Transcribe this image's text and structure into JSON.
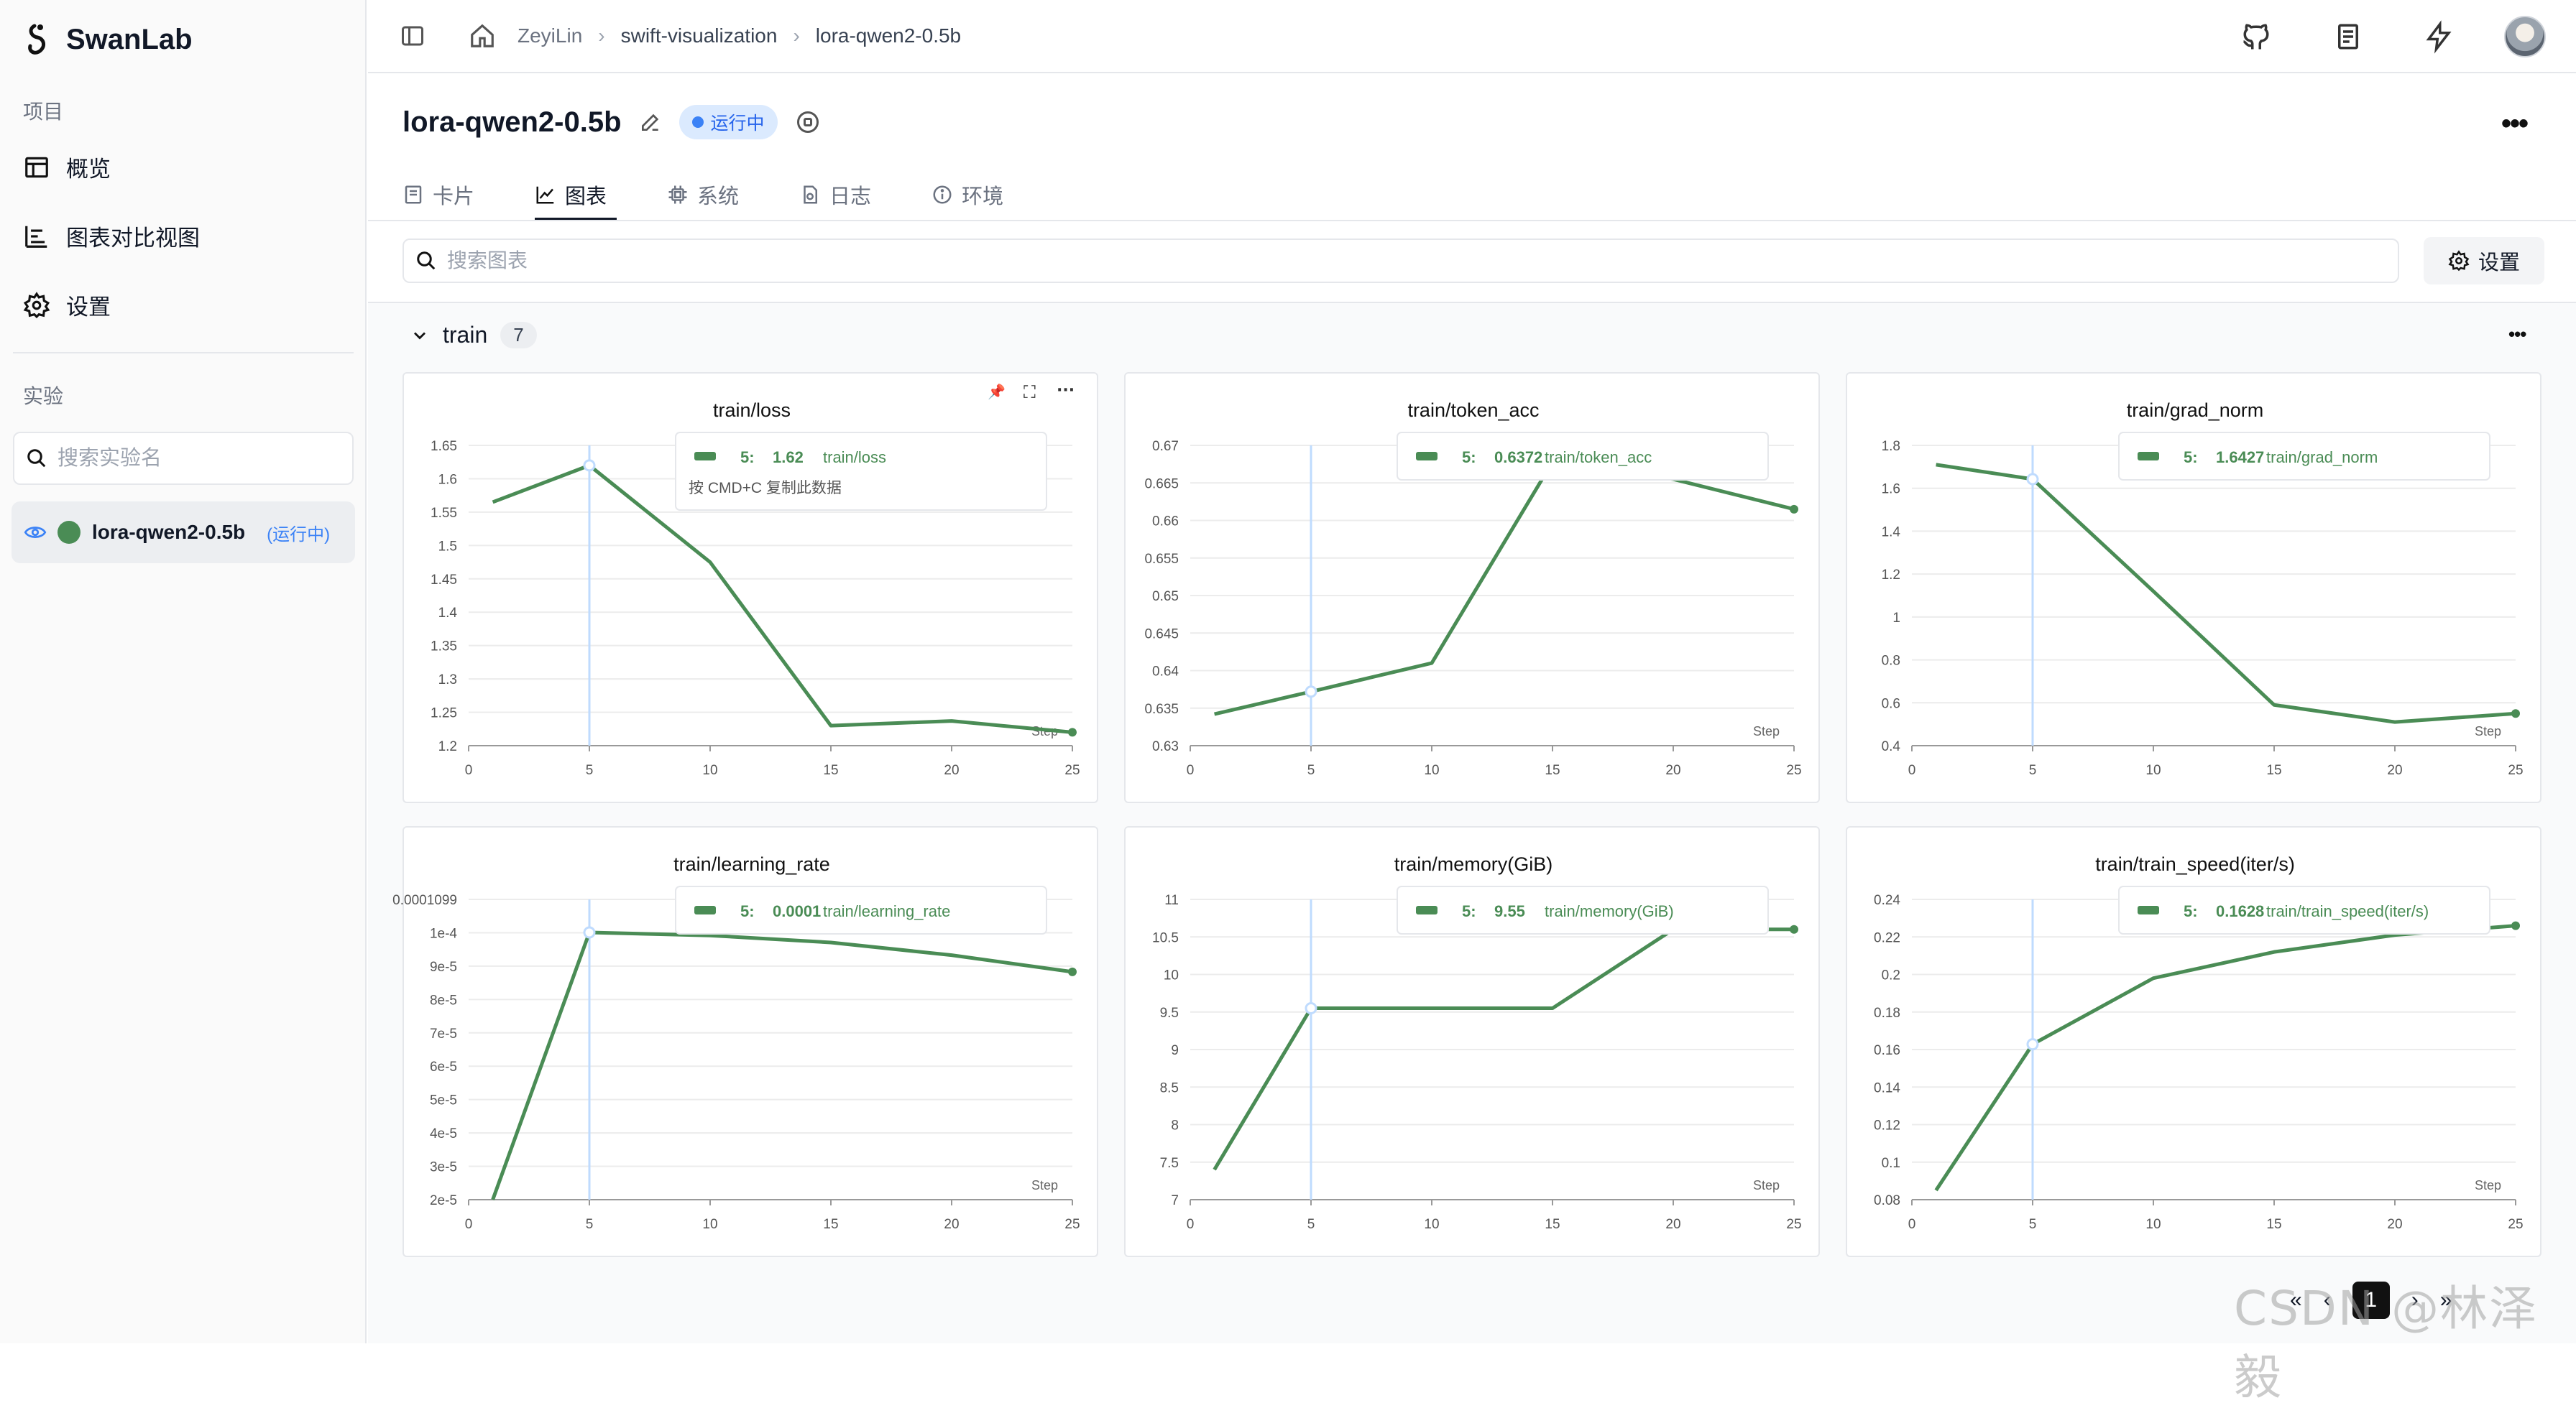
{
  "app": {
    "name": "SwanLab"
  },
  "sidebar": {
    "project_label": "项目",
    "nav": [
      {
        "label": "概览",
        "icon": "table-icon"
      },
      {
        "label": "图表对比视图",
        "icon": "bar-chart-icon"
      },
      {
        "label": "设置",
        "icon": "gear-icon"
      }
    ],
    "experiments_label": "实验",
    "search_placeholder": "搜索实验名",
    "experiment": {
      "name": "lora-qwen2-0.5b",
      "status": "(运行中)",
      "color": "#4a8c55"
    }
  },
  "breadcrumb": [
    "ZeyiLin",
    "swift-visualization",
    "lora-qwen2-0.5b"
  ],
  "run": {
    "title": "lora-qwen2-0.5b",
    "status": "运行中"
  },
  "tabs": [
    {
      "label": "卡片",
      "icon": "card-icon",
      "active": false
    },
    {
      "label": "图表",
      "icon": "line-chart-icon",
      "active": true
    },
    {
      "label": "系统",
      "icon": "chip-icon",
      "active": false
    },
    {
      "label": "日志",
      "icon": "log-icon",
      "active": false
    },
    {
      "label": "环境",
      "icon": "info-icon",
      "active": false
    }
  ],
  "chart_search_placeholder": "搜索图表",
  "settings_label": "设置",
  "group": {
    "name": "train",
    "count": "7"
  },
  "pager": {
    "current": "1"
  },
  "watermark": "CSDN @林泽毅",
  "chart_data": [
    {
      "type": "line",
      "title": "train/loss",
      "xlabel": "Step",
      "ylabel": "",
      "x": [
        1,
        5,
        10,
        15,
        20,
        25
      ],
      "y": [
        1.565,
        1.62,
        1.475,
        1.23,
        1.237,
        1.22
      ],
      "xlim": [
        0,
        25
      ],
      "ylim": [
        1.2,
        1.65
      ],
      "yticks": [
        "1.2",
        "1.25",
        "1.3",
        "1.35",
        "1.4",
        "1.45",
        "1.5",
        "1.55",
        "1.6",
        "1.65"
      ],
      "xticks": [
        "0",
        "5",
        "10",
        "15",
        "20",
        "25"
      ],
      "tooltip": {
        "step": "5:",
        "value": "1.62",
        "name": "train/loss",
        "hint": "按 CMD+C 复制此数据"
      }
    },
    {
      "type": "line",
      "title": "train/token_acc",
      "xlabel": "Step",
      "ylabel": "",
      "x": [
        1,
        5,
        10,
        15,
        20,
        25
      ],
      "y": [
        0.6342,
        0.6372,
        0.641,
        0.6678,
        0.6655,
        0.6615
      ],
      "xlim": [
        0,
        25
      ],
      "ylim": [
        0.63,
        0.67
      ],
      "yticks": [
        "0.63",
        "0.635",
        "0.64",
        "0.645",
        "0.65",
        "0.655",
        "0.66",
        "0.665",
        "0.67"
      ],
      "xticks": [
        "0",
        "5",
        "10",
        "15",
        "20",
        "25"
      ],
      "tooltip": {
        "step": "5:",
        "value": "0.6372",
        "name": "train/token_acc"
      }
    },
    {
      "type": "line",
      "title": "train/grad_norm",
      "xlabel": "Step",
      "ylabel": "",
      "x": [
        1,
        5,
        10,
        15,
        20,
        25
      ],
      "y": [
        1.71,
        1.6427,
        1.12,
        0.59,
        0.51,
        0.55
      ],
      "xlim": [
        0,
        25
      ],
      "ylim": [
        0.4,
        1.8
      ],
      "yticks": [
        "0.4",
        "0.6",
        "0.8",
        "1",
        "1.2",
        "1.4",
        "1.6",
        "1.8"
      ],
      "xticks": [
        "0",
        "5",
        "10",
        "15",
        "20",
        "25"
      ],
      "tooltip": {
        "step": "5:",
        "value": "1.6427",
        "name": "train/grad_norm"
      }
    },
    {
      "type": "line",
      "title": "train/learning_rate",
      "xlabel": "Step",
      "ylabel": "",
      "x": [
        1,
        5,
        10,
        15,
        20,
        25
      ],
      "y": [
        2e-05,
        0.0001,
        9.91e-05,
        9.7e-05,
        9.32e-05,
        8.82e-05
      ],
      "xlim": [
        0,
        25
      ],
      "ylim": [
        2e-05,
        0.0001099
      ],
      "yticks": [
        "2e-5",
        "3e-5",
        "4e-5",
        "5e-5",
        "6e-5",
        "7e-5",
        "8e-5",
        "9e-5",
        "1e-4",
        "0.0001099"
      ],
      "xticks": [
        "0",
        "5",
        "10",
        "15",
        "20",
        "25"
      ],
      "tooltip": {
        "step": "5:",
        "value": "0.0001",
        "name": "train/learning_rate"
      }
    },
    {
      "type": "line",
      "title": "train/memory(GiB)",
      "xlabel": "Step",
      "ylabel": "",
      "x": [
        1,
        5,
        15,
        20,
        25
      ],
      "y": [
        7.4,
        9.55,
        9.55,
        10.6,
        10.6
      ],
      "xlim": [
        0,
        25
      ],
      "ylim": [
        7,
        11
      ],
      "yticks": [
        "7",
        "7.5",
        "8",
        "8.5",
        "9",
        "9.5",
        "10",
        "10.5",
        "11"
      ],
      "xticks": [
        "0",
        "5",
        "10",
        "15",
        "20",
        "25"
      ],
      "tooltip": {
        "step": "5:",
        "value": "9.55",
        "name": "train/memory(GiB)"
      }
    },
    {
      "type": "line",
      "title": "train/train_speed(iter/s)",
      "xlabel": "Step",
      "ylabel": "",
      "x": [
        1,
        5,
        10,
        15,
        20,
        25
      ],
      "y": [
        0.085,
        0.1628,
        0.198,
        0.212,
        0.221,
        0.226
      ],
      "xlim": [
        0,
        25
      ],
      "ylim": [
        0.08,
        0.24
      ],
      "yticks": [
        "0.08",
        "0.1",
        "0.12",
        "0.14",
        "0.16",
        "0.18",
        "0.2",
        "0.22",
        "0.24"
      ],
      "xticks": [
        "0",
        "5",
        "10",
        "15",
        "20",
        "25"
      ],
      "tooltip": {
        "step": "5:",
        "value": "0.1628",
        "name": "train/train_speed(iter/s)"
      }
    }
  ]
}
